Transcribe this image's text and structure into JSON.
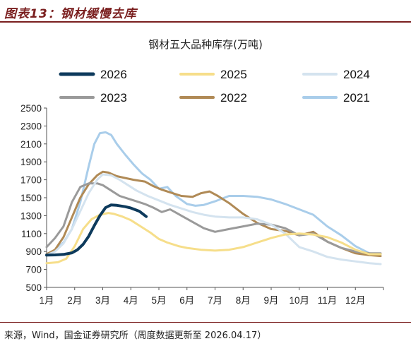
{
  "header": {
    "title": "图表13：钢材缓慢去库"
  },
  "footer": {
    "source": "来源，Wind，国金证券研究所（周度数据更新至 2026.04.17）"
  },
  "chart_data": {
    "type": "line",
    "title": "钢材五大品种库存(万吨)",
    "xlabel": "",
    "ylabel": "",
    "ylim": [
      500,
      2500
    ],
    "yticks": [
      "2500",
      "2300",
      "2100",
      "1900",
      "1700",
      "1500",
      "1300",
      "1100",
      "900",
      "700",
      "500"
    ],
    "xticks": [
      "1月",
      "2月",
      "3月",
      "4月",
      "5月",
      "6月",
      "7月",
      "8月",
      "9月",
      "10月",
      "11月",
      "12月"
    ],
    "grid": false,
    "legend": "top",
    "series": [
      {
        "name": "2026",
        "color": "#0d3a5c",
        "width": 4,
        "x": [
          1,
          1.3,
          1.6,
          1.9,
          2.1,
          2.3,
          2.5,
          2.7,
          2.9,
          3.1,
          3.3,
          3.5,
          3.8,
          4.0,
          4.3,
          4.55
        ],
        "y": [
          860,
          862,
          868,
          885,
          920,
          980,
          1070,
          1190,
          1300,
          1390,
          1420,
          1415,
          1400,
          1385,
          1350,
          1290
        ]
      },
      {
        "name": "2025",
        "color": "#f6de8a",
        "width": 3,
        "x": [
          1,
          1.4,
          1.7,
          2.0,
          2.3,
          2.6,
          2.9,
          3.2,
          3.4,
          3.7,
          4.0,
          4.3,
          4.7,
          5.0,
          5.3,
          5.7,
          6.0,
          6.5,
          7.0,
          7.5,
          8.0,
          8.5,
          9.0,
          9.5,
          10.0,
          10.5,
          11.0,
          11.5,
          12.0,
          12.5,
          12.9
        ],
        "y": [
          770,
          780,
          820,
          960,
          1150,
          1260,
          1310,
          1330,
          1320,
          1290,
          1250,
          1190,
          1110,
          1040,
          1000,
          960,
          940,
          920,
          910,
          920,
          950,
          1000,
          1050,
          1090,
          1100,
          1090,
          1060,
          1000,
          920,
          870,
          870
        ]
      },
      {
        "name": "2024",
        "color": "#d4e3ef",
        "width": 3,
        "x": [
          1,
          1.3,
          1.6,
          1.9,
          2.2,
          2.5,
          2.8,
          3.0,
          3.3,
          3.6,
          3.9,
          4.2,
          4.6,
          5.0,
          5.4,
          5.8,
          6.2,
          6.6,
          7.0,
          7.5,
          8.0,
          8.5,
          9.0,
          9.5,
          10.0,
          10.5,
          11.0,
          11.5,
          12.0,
          12.5,
          12.9
        ],
        "y": [
          860,
          900,
          990,
          1150,
          1350,
          1550,
          1700,
          1760,
          1750,
          1700,
          1640,
          1580,
          1520,
          1470,
          1420,
          1380,
          1340,
          1310,
          1290,
          1280,
          1280,
          1260,
          1200,
          1100,
          950,
          900,
          840,
          810,
          790,
          770,
          760
        ]
      },
      {
        "name": "2023",
        "color": "#9a9a9a",
        "width": 3,
        "x": [
          1,
          1.3,
          1.6,
          1.9,
          2.2,
          2.5,
          2.8,
          3.0,
          3.3,
          3.6,
          3.9,
          4.2,
          4.5,
          4.8,
          5.1,
          5.4,
          5.8,
          6.2,
          6.6,
          7.0,
          7.5,
          8.0,
          8.5,
          9.0,
          9.5,
          10.0,
          10.5,
          11.0,
          11.5,
          12.0,
          12.5,
          12.9
        ],
        "y": [
          950,
          1050,
          1180,
          1450,
          1620,
          1660,
          1660,
          1640,
          1580,
          1520,
          1490,
          1460,
          1430,
          1390,
          1340,
          1370,
          1300,
          1230,
          1160,
          1120,
          1150,
          1180,
          1210,
          1200,
          1160,
          1080,
          1100,
          1010,
          940,
          900,
          880,
          880
        ]
      },
      {
        "name": "2022",
        "color": "#b08a56",
        "width": 3,
        "x": [
          1,
          1.3,
          1.6,
          1.9,
          2.2,
          2.5,
          2.8,
          3.0,
          3.2,
          3.5,
          3.8,
          4.1,
          4.5,
          4.8,
          5.1,
          5.4,
          5.8,
          6.2,
          6.5,
          6.8,
          7.1,
          7.5,
          8.0,
          8.5,
          9.0,
          9.5,
          10.0,
          10.5,
          11.0,
          11.5,
          12.0,
          12.5,
          12.9
        ],
        "y": [
          870,
          920,
          1060,
          1280,
          1500,
          1650,
          1750,
          1790,
          1780,
          1740,
          1720,
          1700,
          1680,
          1630,
          1590,
          1560,
          1520,
          1510,
          1550,
          1570,
          1520,
          1440,
          1320,
          1220,
          1150,
          1130,
          1080,
          1120,
          1010,
          940,
          880,
          860,
          850
        ]
      },
      {
        "name": "2021",
        "color": "#a9cdea",
        "width": 3,
        "x": [
          1,
          1.3,
          1.6,
          1.9,
          2.2,
          2.5,
          2.7,
          2.9,
          3.1,
          3.3,
          3.5,
          3.8,
          4.1,
          4.4,
          4.7,
          5.0,
          5.3,
          5.6,
          6.0,
          6.3,
          6.6,
          7.0,
          7.5,
          8.0,
          8.5,
          9.0,
          9.5,
          10.0,
          10.5,
          11.0,
          11.5,
          12.0,
          12.5,
          12.9
        ],
        "y": [
          860,
          910,
          1000,
          1150,
          1450,
          1850,
          2100,
          2220,
          2230,
          2200,
          2100,
          1980,
          1870,
          1770,
          1700,
          1600,
          1620,
          1520,
          1430,
          1410,
          1420,
          1460,
          1520,
          1520,
          1510,
          1480,
          1430,
          1370,
          1310,
          1180,
          1080,
          960,
          880,
          870
        ]
      }
    ]
  }
}
